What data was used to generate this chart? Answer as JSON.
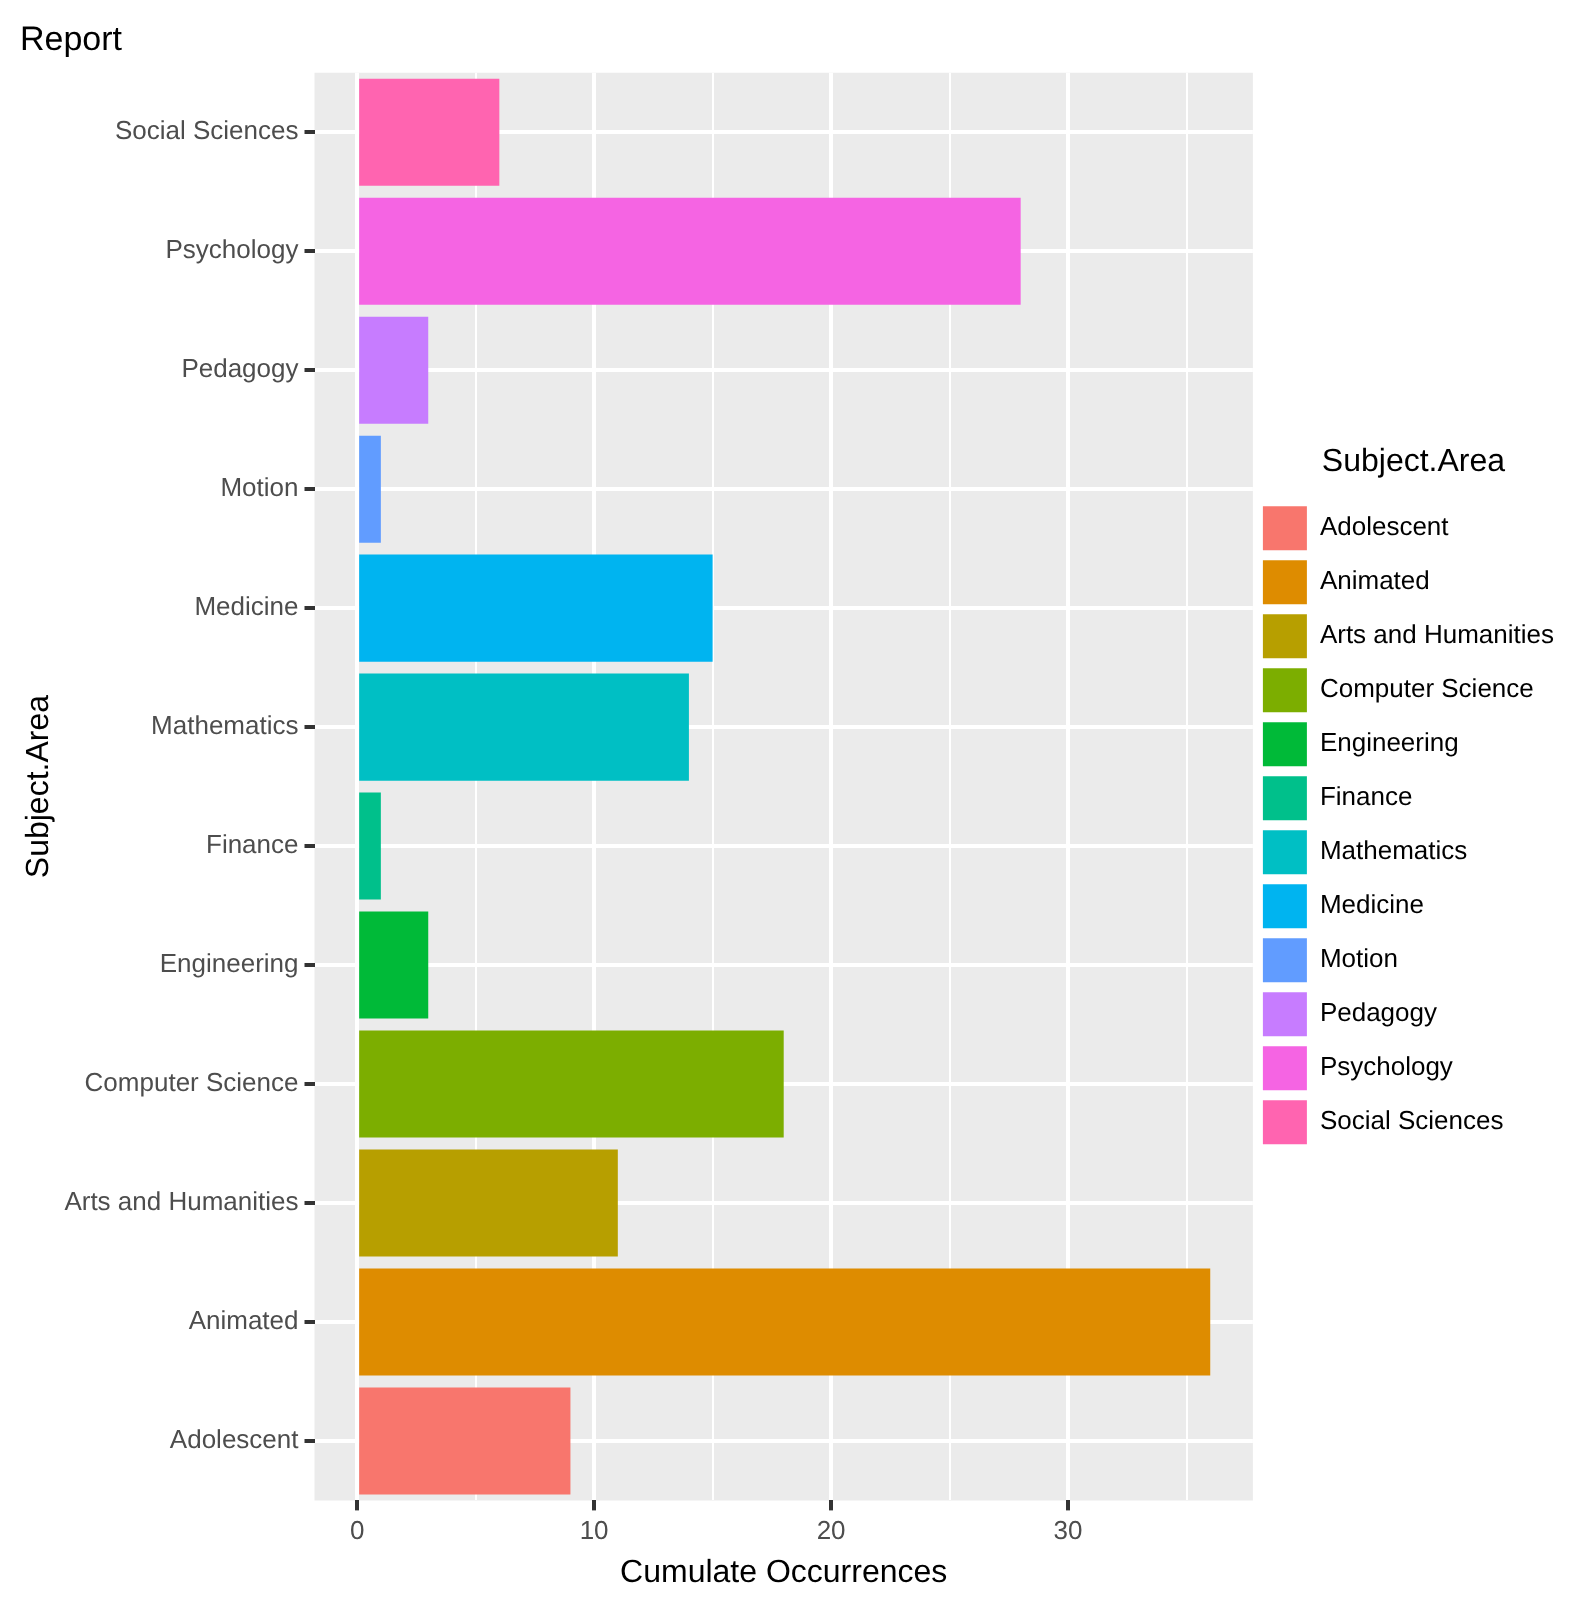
{
  "chart_data": {
    "type": "bar",
    "orientation": "horizontal",
    "title": "Report",
    "xlabel": "Cumulate Occurrences",
    "ylabel": "Subject.Area",
    "legend_title": "Subject.Area",
    "legend": "right",
    "grid": true,
    "categories": [
      "Social Sciences",
      "Psychology",
      "Pedagogy",
      "Motion",
      "Medicine",
      "Mathematics",
      "Finance",
      "Engineering",
      "Computer Science",
      "Arts and Humanities",
      "Animated",
      "Adolescent"
    ],
    "series": [
      {
        "name": "Adolescent",
        "color": "#f8766d",
        "values": [
          null,
          null,
          null,
          null,
          null,
          null,
          null,
          null,
          null,
          null,
          null,
          9
        ]
      },
      {
        "name": "Animated",
        "color": "#de8c00",
        "values": [
          null,
          null,
          null,
          null,
          null,
          null,
          null,
          null,
          null,
          null,
          36,
          null
        ]
      },
      {
        "name": "Arts and Humanities",
        "color": "#b79f00",
        "values": [
          null,
          null,
          null,
          null,
          null,
          null,
          null,
          null,
          null,
          11,
          null,
          null
        ]
      },
      {
        "name": "Computer Science",
        "color": "#7cae00",
        "values": [
          null,
          null,
          null,
          null,
          null,
          null,
          null,
          null,
          18,
          null,
          null,
          null
        ]
      },
      {
        "name": "Engineering",
        "color": "#00ba38",
        "values": [
          null,
          null,
          null,
          null,
          null,
          null,
          null,
          3,
          null,
          null,
          null,
          null
        ]
      },
      {
        "name": "Finance",
        "color": "#00c08b",
        "values": [
          null,
          null,
          null,
          null,
          null,
          null,
          1,
          null,
          null,
          null,
          null,
          null
        ]
      },
      {
        "name": "Mathematics",
        "color": "#00bfc4",
        "values": [
          null,
          null,
          null,
          null,
          null,
          14,
          null,
          null,
          null,
          null,
          null,
          null
        ]
      },
      {
        "name": "Medicine",
        "color": "#00b4f0",
        "values": [
          null,
          null,
          null,
          null,
          15,
          null,
          null,
          null,
          null,
          null,
          null,
          null
        ]
      },
      {
        "name": "Motion",
        "color": "#619cff",
        "values": [
          null,
          null,
          null,
          1,
          null,
          null,
          null,
          null,
          null,
          null,
          null,
          null
        ]
      },
      {
        "name": "Pedagogy",
        "color": "#c77cff",
        "values": [
          null,
          null,
          3,
          null,
          null,
          null,
          null,
          null,
          null,
          null,
          null,
          null
        ]
      },
      {
        "name": "Psychology",
        "color": "#f564e3",
        "values": [
          null,
          28,
          null,
          null,
          null,
          null,
          null,
          null,
          null,
          null,
          null,
          null
        ]
      },
      {
        "name": "Social Sciences",
        "color": "#ff64b0",
        "values": [
          6,
          null,
          null,
          null,
          null,
          null,
          null,
          null,
          null,
          null,
          null,
          null
        ]
      }
    ],
    "xlim": [
      -1.8,
      37.8
    ],
    "xticks": [
      0,
      {
        "value": 5,
        "label": null
      },
      10,
      {
        "value": 15,
        "label": null
      },
      20,
      {
        "value": 25,
        "label": null
      },
      30,
      {
        "value": 35,
        "label": null
      }
    ]
  }
}
